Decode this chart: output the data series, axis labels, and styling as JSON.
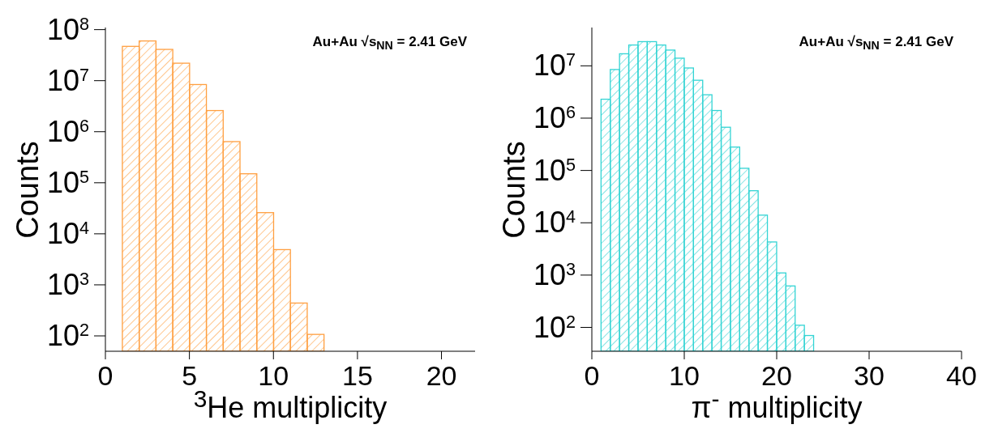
{
  "chart_data": [
    {
      "type": "histogram",
      "xlabel": "$^{3}$He multiplicity",
      "ylabel": "Counts",
      "annotations": [
        "Au+Au √s$_{NN}$ = 2.41 GeV"
      ],
      "color": "#ff9f40",
      "log": true,
      "bins": [
        1,
        2,
        3,
        4,
        5,
        6,
        7,
        8,
        9,
        10,
        11,
        12,
        13
      ],
      "values": [
        47000000,
        60000000,
        41000000,
        22000000,
        8400000,
        2600000,
        640000,
        150000,
        26000,
        4900,
        440,
        107
      ],
      "xlim": [
        0,
        22
      ],
      "xticks": [
        0,
        5,
        10,
        15,
        20
      ],
      "ylim": [
        50,
        110000000
      ],
      "yticks": [
        {
          "value": 100,
          "label": "10$^{2}$"
        },
        {
          "value": 1000,
          "label": "10$^{3}$"
        },
        {
          "value": 10000,
          "label": "10$^{4}$"
        },
        {
          "value": 100000,
          "label": "10$^{5}$"
        },
        {
          "value": 1000000,
          "label": "10$^{6}$"
        },
        {
          "value": 10000000,
          "label": "10$^{7}$"
        },
        {
          "value": 100000000,
          "label": "10$^{8}$"
        }
      ]
    },
    {
      "type": "histogram",
      "xlabel": "π$^{-}$ multiplicity",
      "ylabel": "Counts",
      "annotations": [
        "Au+Au √s$_{NN}$ = 2.41 GeV"
      ],
      "color": "#33d4d4",
      "log": true,
      "bins": [
        1,
        2,
        3,
        4,
        5,
        6,
        7,
        8,
        9,
        10,
        11,
        12,
        13,
        14,
        15,
        16,
        17,
        18,
        19,
        20,
        21,
        22,
        23,
        24
      ],
      "values": [
        2300000,
        8500000,
        17000000,
        25000000,
        29000000,
        29000000,
        25000000,
        20000000,
        14000000,
        9100000,
        5300000,
        2800000,
        1400000,
        670000,
        280000,
        110000,
        41000,
        14000,
        4300,
        1100,
        620,
        110,
        70
      ],
      "xlim": [
        0,
        40
      ],
      "xticks": [
        0,
        10,
        20,
        30,
        40
      ],
      "ylim": [
        35,
        54000000
      ],
      "yticks": [
        {
          "value": 100,
          "label": "10$^{2}$"
        },
        {
          "value": 1000,
          "label": "10$^{3}$"
        },
        {
          "value": 10000,
          "label": "10$^{4}$"
        },
        {
          "value": 100000,
          "label": "10$^{5}$"
        },
        {
          "value": 1000000,
          "label": "10$^{6}$"
        },
        {
          "value": 10000000,
          "label": "10$^{7}$"
        }
      ]
    }
  ]
}
